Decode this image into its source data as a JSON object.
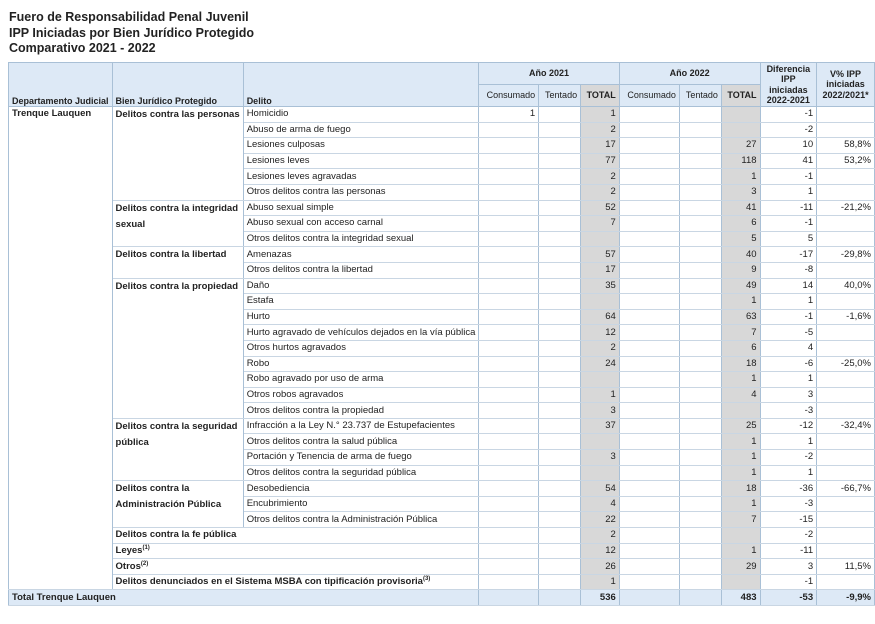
{
  "header": {
    "title": [
      "Fuero de Responsabilidad Penal Juvenil",
      "IPP Iniciadas por Bien Jurídico Protegido",
      "Comparativo 2021 - 2022"
    ]
  },
  "table": {
    "columns": {
      "departamento": "Departamento Judicial",
      "bien": "Bien Jurídico Protegido",
      "delito": "Delito",
      "year_2021": "Año 2021",
      "year_2022": "Año 2022",
      "sub": [
        "Consumado",
        "Tentado",
        "TOTAL"
      ],
      "diferencia": "Diferencia IPP iniciadas 2022-2021",
      "variacion": "V% IPP iniciadas 2022/2021*"
    },
    "departamento": "Trenque Lauquen",
    "groups": [
      {
        "name": "Delitos contra las personas",
        "rows": [
          [
            "Homicidio",
            1,
            null,
            1,
            null,
            null,
            null,
            -1,
            null
          ],
          [
            "Abuso de arma de fuego",
            null,
            null,
            2,
            null,
            null,
            null,
            -2,
            null
          ],
          [
            "Lesiones culposas",
            null,
            null,
            17,
            null,
            null,
            27,
            10,
            "58,8%"
          ],
          [
            "Lesiones leves",
            null,
            null,
            77,
            null,
            null,
            118,
            41,
            "53,2%"
          ],
          [
            "Lesiones leves agravadas",
            null,
            null,
            2,
            null,
            null,
            1,
            -1,
            null
          ],
          [
            "Otros delitos contra las personas",
            null,
            null,
            2,
            null,
            null,
            3,
            1,
            null
          ]
        ]
      },
      {
        "name": "Delitos contra la integridad sexual",
        "rows": [
          [
            "Abuso sexual simple",
            null,
            null,
            52,
            null,
            null,
            41,
            -11,
            "-21,2%"
          ],
          [
            "Abuso sexual con acceso carnal",
            null,
            null,
            7,
            null,
            null,
            6,
            -1,
            null
          ],
          [
            "Otros delitos contra la integridad sexual",
            null,
            null,
            null,
            null,
            null,
            5,
            5,
            null
          ]
        ]
      },
      {
        "name": "Delitos contra la libertad",
        "rows": [
          [
            "Amenazas",
            null,
            null,
            57,
            null,
            null,
            40,
            -17,
            "-29,8%"
          ],
          [
            "Otros delitos contra la libertad",
            null,
            null,
            17,
            null,
            null,
            9,
            -8,
            null
          ]
        ]
      },
      {
        "name": "Delitos contra la propiedad",
        "rows": [
          [
            "Daño",
            null,
            null,
            35,
            null,
            null,
            49,
            14,
            "40,0%"
          ],
          [
            "Estafa",
            null,
            null,
            null,
            null,
            null,
            1,
            1,
            null
          ],
          [
            "Hurto",
            null,
            null,
            64,
            null,
            null,
            63,
            -1,
            "-1,6%"
          ],
          [
            "Hurto agravado de vehículos dejados en la vía pública",
            null,
            null,
            12,
            null,
            null,
            7,
            -5,
            null
          ],
          [
            "Otros hurtos agravados",
            null,
            null,
            2,
            null,
            null,
            6,
            4,
            null
          ],
          [
            "Robo",
            null,
            null,
            24,
            null,
            null,
            18,
            -6,
            "-25,0%"
          ],
          [
            "Robo agravado por uso de arma",
            null,
            null,
            null,
            null,
            null,
            1,
            1,
            null
          ],
          [
            "Otros robos agravados",
            null,
            null,
            1,
            null,
            null,
            4,
            3,
            null
          ],
          [
            "Otros delitos contra la propiedad",
            null,
            null,
            3,
            null,
            null,
            null,
            -3,
            null
          ]
        ]
      },
      {
        "name": "Delitos contra la seguridad pública",
        "rows": [
          [
            "Infracción a la Ley N.° 23.737 de Estupefacientes",
            null,
            null,
            37,
            null,
            null,
            25,
            -12,
            "-32,4%"
          ],
          [
            "Otros delitos contra la salud pública",
            null,
            null,
            null,
            null,
            null,
            1,
            1,
            null
          ],
          [
            "Portación y Tenencia de arma de fuego",
            null,
            null,
            3,
            null,
            null,
            1,
            -2,
            null
          ],
          [
            "Otros delitos contra la seguridad pública",
            null,
            null,
            null,
            null,
            null,
            1,
            1,
            null
          ]
        ]
      },
      {
        "name": "Delitos contra la Administración Pública",
        "rows": [
          [
            "Desobediencia",
            null,
            null,
            54,
            null,
            null,
            18,
            -36,
            "-66,7%"
          ],
          [
            "Encubrimiento",
            null,
            null,
            4,
            null,
            null,
            1,
            -3,
            null
          ],
          [
            "Otros delitos contra la Administración Pública",
            null,
            null,
            22,
            null,
            null,
            7,
            -15,
            null
          ]
        ]
      }
    ],
    "single_rows": [
      {
        "label": "Delitos contra la fe pública",
        "values": [
          null,
          null,
          2,
          null,
          null,
          null,
          -2,
          null
        ]
      },
      {
        "label": "Leyes",
        "note": "(1)",
        "values": [
          null,
          null,
          12,
          null,
          null,
          1,
          -11,
          null
        ]
      },
      {
        "label": "Otros",
        "note": "(2)",
        "values": [
          null,
          null,
          26,
          null,
          null,
          29,
          3,
          "11,5%"
        ]
      },
      {
        "label": "Delitos denunciados en el Sistema MSBA con tipificación provisoria",
        "note": "(3)",
        "values": [
          null,
          null,
          1,
          null,
          null,
          null,
          -1,
          null
        ]
      }
    ],
    "total": {
      "label": "Total Trenque Lauquen",
      "values": [
        null,
        null,
        536,
        null,
        null,
        483,
        -53,
        "-9,9%"
      ]
    }
  }
}
